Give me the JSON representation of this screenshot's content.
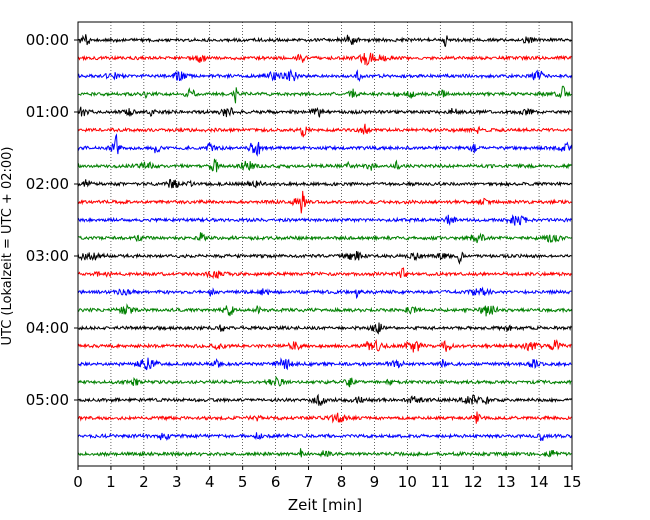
{
  "chart_data": {
    "type": "line",
    "title": "",
    "xlabel": "Zeit  [min]",
    "ylabel": "UTC (Lokalzeit = UTC + 02:00)",
    "xlim": [
      0,
      15
    ],
    "xticks": [
      "0",
      "1",
      "2",
      "3",
      "4",
      "5",
      "6",
      "7",
      "8",
      "9",
      "10",
      "11",
      "12",
      "13",
      "14",
      "15"
    ],
    "yticks": [
      "00:00",
      "01:00",
      "02:00",
      "03:00",
      "04:00",
      "05:00"
    ],
    "grid": "vertical dotted",
    "colors": [
      "#000000",
      "#ff0000",
      "#0000ff",
      "#008000"
    ],
    "traces_per_hour": 4,
    "trace_minutes": 15,
    "rows": [
      {
        "start": "00:00",
        "color": "#000000"
      },
      {
        "start": "00:15",
        "color": "#ff0000"
      },
      {
        "start": "00:30",
        "color": "#0000ff"
      },
      {
        "start": "00:45",
        "color": "#008000"
      },
      {
        "start": "01:00",
        "color": "#000000"
      },
      {
        "start": "01:15",
        "color": "#ff0000"
      },
      {
        "start": "01:30",
        "color": "#0000ff"
      },
      {
        "start": "01:45",
        "color": "#008000"
      },
      {
        "start": "02:00",
        "color": "#000000"
      },
      {
        "start": "02:15",
        "color": "#ff0000"
      },
      {
        "start": "02:30",
        "color": "#0000ff"
      },
      {
        "start": "02:45",
        "color": "#008000"
      },
      {
        "start": "03:00",
        "color": "#000000"
      },
      {
        "start": "03:15",
        "color": "#ff0000"
      },
      {
        "start": "03:30",
        "color": "#0000ff"
      },
      {
        "start": "03:45",
        "color": "#008000"
      },
      {
        "start": "04:00",
        "color": "#000000"
      },
      {
        "start": "04:15",
        "color": "#ff0000"
      },
      {
        "start": "04:30",
        "color": "#0000ff"
      },
      {
        "start": "04:45",
        "color": "#008000"
      },
      {
        "start": "05:00",
        "color": "#000000"
      },
      {
        "start": "05:15",
        "color": "#ff0000"
      },
      {
        "start": "05:30",
        "color": "#0000ff"
      },
      {
        "start": "05:45",
        "color": "#008000"
      }
    ]
  }
}
